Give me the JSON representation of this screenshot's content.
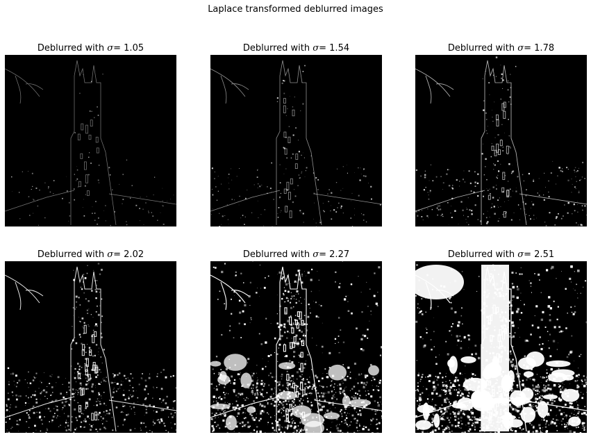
{
  "figure": {
    "title": "Laplace transformed deblurred images"
  },
  "panels": [
    {
      "label": "Deblurred with ",
      "symbol": "σ",
      "value": "= 1.05",
      "intensity": 0.22
    },
    {
      "label": "Deblurred with ",
      "symbol": "σ",
      "value": "= 1.54",
      "intensity": 0.32
    },
    {
      "label": "Deblurred with ",
      "symbol": "σ",
      "value": "= 1.78",
      "intensity": 0.45
    },
    {
      "label": "Deblurred with ",
      "symbol": "σ",
      "value": "= 2.02",
      "intensity": 0.65
    },
    {
      "label": "Deblurred with ",
      "symbol": "σ",
      "value": "= 2.27",
      "intensity": 0.85
    },
    {
      "label": "Deblurred with ",
      "symbol": "σ",
      "value": "= 2.51",
      "intensity": 1.0
    }
  ],
  "colors": {
    "background": "#000000",
    "edge": "#ffffff"
  }
}
